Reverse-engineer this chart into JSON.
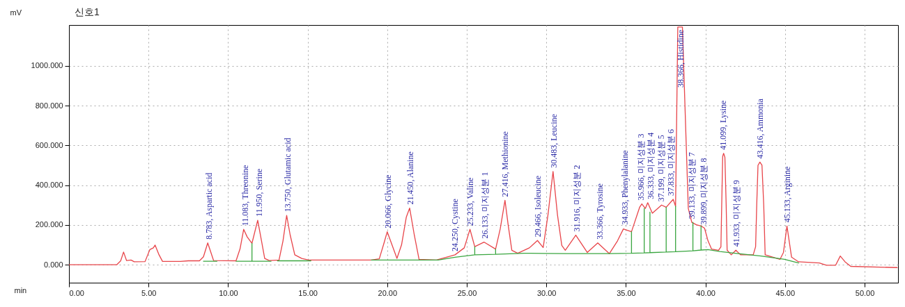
{
  "chart_data": {
    "type": "line",
    "title": "신호1",
    "xlabel": "min",
    "ylabel": "mV",
    "xlim": [
      0,
      52.1
    ],
    "ylim": [
      -90,
      1205
    ],
    "xticks": [
      {
        "value": 0,
        "label": "0.00"
      },
      {
        "value": 5,
        "label": "5.00"
      },
      {
        "value": 10,
        "label": "10.00"
      },
      {
        "value": 15,
        "label": "15.00"
      },
      {
        "value": 20,
        "label": "20.00"
      },
      {
        "value": 25,
        "label": "25.00"
      },
      {
        "value": 30,
        "label": "30.00"
      },
      {
        "value": 35,
        "label": "35.00"
      },
      {
        "value": 40,
        "label": "40.00"
      },
      {
        "value": 45,
        "label": "45.00"
      },
      {
        "value": 50,
        "label": "50.00"
      }
    ],
    "yticks": [
      {
        "value": 0,
        "label": "0.000"
      },
      {
        "value": 200,
        "label": "200.000"
      },
      {
        "value": 400,
        "label": "400.000"
      },
      {
        "value": 600,
        "label": "600.000"
      },
      {
        "value": 800,
        "label": "800.000"
      },
      {
        "value": 1000,
        "label": "1000.000"
      }
    ],
    "grid": true,
    "series": [
      {
        "color": "#e8454a",
        "x": [
          0,
          3.0,
          3.25,
          3.43,
          3.62,
          3.9,
          4.1,
          4.78,
          5.08,
          5.3,
          5.41,
          5.66,
          5.88,
          7.0,
          7.5,
          8.2,
          8.45,
          8.72,
          9.09,
          10.5,
          10.75,
          10.98,
          11.2,
          11.5,
          11.86,
          12.1,
          12.3,
          12.59,
          13.2,
          13.45,
          13.68,
          13.9,
          14.19,
          14.63,
          15.07,
          19.0,
          19.5,
          19.8,
          20.0,
          20.3,
          20.61,
          20.9,
          21.2,
          21.41,
          21.7,
          22.0,
          23.09,
          24.26,
          24.84,
          25.2,
          25.5,
          26.08,
          26.81,
          27.1,
          27.4,
          27.6,
          27.83,
          28.2,
          28.93,
          29.44,
          29.8,
          30.1,
          30.42,
          30.7,
          30.97,
          31.19,
          31.85,
          32.57,
          33.23,
          33.96,
          34.47,
          34.84,
          35.35,
          35.86,
          36.0,
          36.22,
          36.37,
          36.66,
          37.24,
          37.53,
          37.97,
          38.12,
          38.26,
          38.55,
          38.92,
          39.14,
          39.43,
          39.72,
          39.94,
          40.16,
          40.38,
          40.82,
          40.97,
          41.02,
          41.08,
          41.14,
          41.22,
          41.3,
          41.36,
          41.62,
          41.91,
          42.2,
          43.0,
          43.15,
          43.22,
          43.3,
          43.42,
          43.55,
          43.66,
          43.75,
          44.68,
          44.9,
          45.12,
          45.41,
          45.85,
          47.16,
          47.6,
          48.18,
          48.47,
          48.77,
          49.13,
          52.05
        ],
        "values": [
          0,
          0,
          20,
          64,
          21,
          24,
          15,
          16,
          76,
          85,
          99,
          50,
          17,
          17,
          20,
          20,
          40,
          110,
          21,
          20,
          80,
          178,
          140,
          108,
          224,
          120,
          32,
          21,
          24,
          120,
          248,
          150,
          50,
          32,
          24,
          24,
          30,
          110,
          166,
          100,
          32,
          100,
          240,
          285,
          150,
          27,
          24,
          50,
          85,
          178,
          91,
          114,
          79,
          180,
          324,
          200,
          73,
          58,
          85,
          122,
          87,
          250,
          469,
          250,
          97,
          73,
          149,
          62,
          110,
          56,
          120,
          180,
          166,
          289,
          306,
          283,
          312,
          259,
          300,
          289,
          329,
          294,
          1195,
          1195,
          283,
          213,
          201,
          195,
          184,
          120,
          79,
          73,
          90,
          300,
          545,
          560,
          540,
          300,
          73,
          50,
          73,
          50,
          50,
          91,
          300,
          500,
          516,
          500,
          300,
          50,
          27,
          62,
          195,
          38,
          15,
          9,
          -2,
          -2,
          44,
          15,
          -8,
          -14
        ]
      },
      {
        "color": "#3aa640",
        "x": [
          8.45,
          9.3,
          9.8,
          10.5,
          11.5,
          11.5,
          11.5,
          12.7,
          13.0,
          13.1,
          15.2,
          17.0,
          19.0,
          23.2,
          24.26,
          25.5,
          25.5,
          25.5,
          26.81,
          26.81,
          26.81,
          28.6,
          29.8,
          31.19,
          32.57,
          33.96,
          35.35,
          35.35,
          35.35,
          36.15,
          36.15,
          36.15,
          36.51,
          36.51,
          36.51,
          37.53,
          37.53,
          37.53,
          38.12,
          38.12,
          38.12,
          39.21,
          39.21,
          39.21,
          39.72,
          39.72,
          39.72,
          40.16,
          40.9,
          42.06,
          43.5,
          44.97,
          45.85
        ],
        "values": [
          18,
          18,
          null,
          18,
          18,
          108,
          18,
          18,
          null,
          20,
          20,
          null,
          24,
          24,
          38,
          50,
          91,
          50,
          53,
          79,
          53,
          58,
          57,
          56,
          56,
          56,
          58,
          166,
          58,
          60,
          283,
          60,
          61,
          265,
          61,
          64,
          289,
          64,
          66,
          294,
          66,
          70,
          213,
          70,
          74,
          195,
          74,
          76,
          67,
          56,
          44,
          27,
          9
        ]
      }
    ],
    "annotations": [
      {
        "text": "8.783, Aspartic acid",
        "x": 8.783,
        "y": 110
      },
      {
        "text": "11.083, Threonine",
        "x": 11.083,
        "y": 178
      },
      {
        "text": "11.950, Serine",
        "x": 11.95,
        "y": 224
      },
      {
        "text": "13.750, Glutamic acid",
        "x": 13.75,
        "y": 248
      },
      {
        "text": "20.066, Glycine",
        "x": 20.066,
        "y": 166
      },
      {
        "text": "21.450, Alanine",
        "x": 21.45,
        "y": 285
      },
      {
        "text": "24.250, Cystine",
        "x": 24.25,
        "y": 50
      },
      {
        "text": "25.233, Valine",
        "x": 25.233,
        "y": 178
      },
      {
        "text": "26.133, 미지성분 1",
        "x": 26.133,
        "y": 114
      },
      {
        "text": "27.416, Methionine",
        "x": 27.416,
        "y": 324
      },
      {
        "text": "29.466, Isoleucine",
        "x": 29.466,
        "y": 122
      },
      {
        "text": "30.483, Leucine",
        "x": 30.483,
        "y": 469
      },
      {
        "text": "31.916, 미지성분 2",
        "x": 31.916,
        "y": 149
      },
      {
        "text": "33.366, Tyrosine",
        "x": 33.366,
        "y": 110
      },
      {
        "text": "34.933, Phenylalanine",
        "x": 34.933,
        "y": 184
      },
      {
        "text": "35.966, 미지성분 3",
        "x": 35.966,
        "y": 306
      },
      {
        "text": "36.333, 미지성분 4",
        "x": 36.333,
        "y": 312
      },
      {
        "text": "37.199, 미지성분 5",
        "x": 37.199,
        "y": 300
      },
      {
        "text": "37.833, 미지성분 6",
        "x": 37.833,
        "y": 329
      },
      {
        "text": "38.366, Histidine",
        "x": 38.366,
        "y": 1195
      },
      {
        "text": "39.133, 미지성분 7",
        "x": 39.133,
        "y": 213
      },
      {
        "text": "39.899, 미지성분 8",
        "x": 39.899,
        "y": 184
      },
      {
        "text": "41.099, Lysine",
        "x": 41.099,
        "y": 560
      },
      {
        "text": "41.933, 미지성분 9",
        "x": 41.933,
        "y": 73
      },
      {
        "text": "43.416, Ammonia",
        "x": 43.416,
        "y": 516
      },
      {
        "text": "45.133, Arginine",
        "x": 45.133,
        "y": 195
      }
    ]
  }
}
